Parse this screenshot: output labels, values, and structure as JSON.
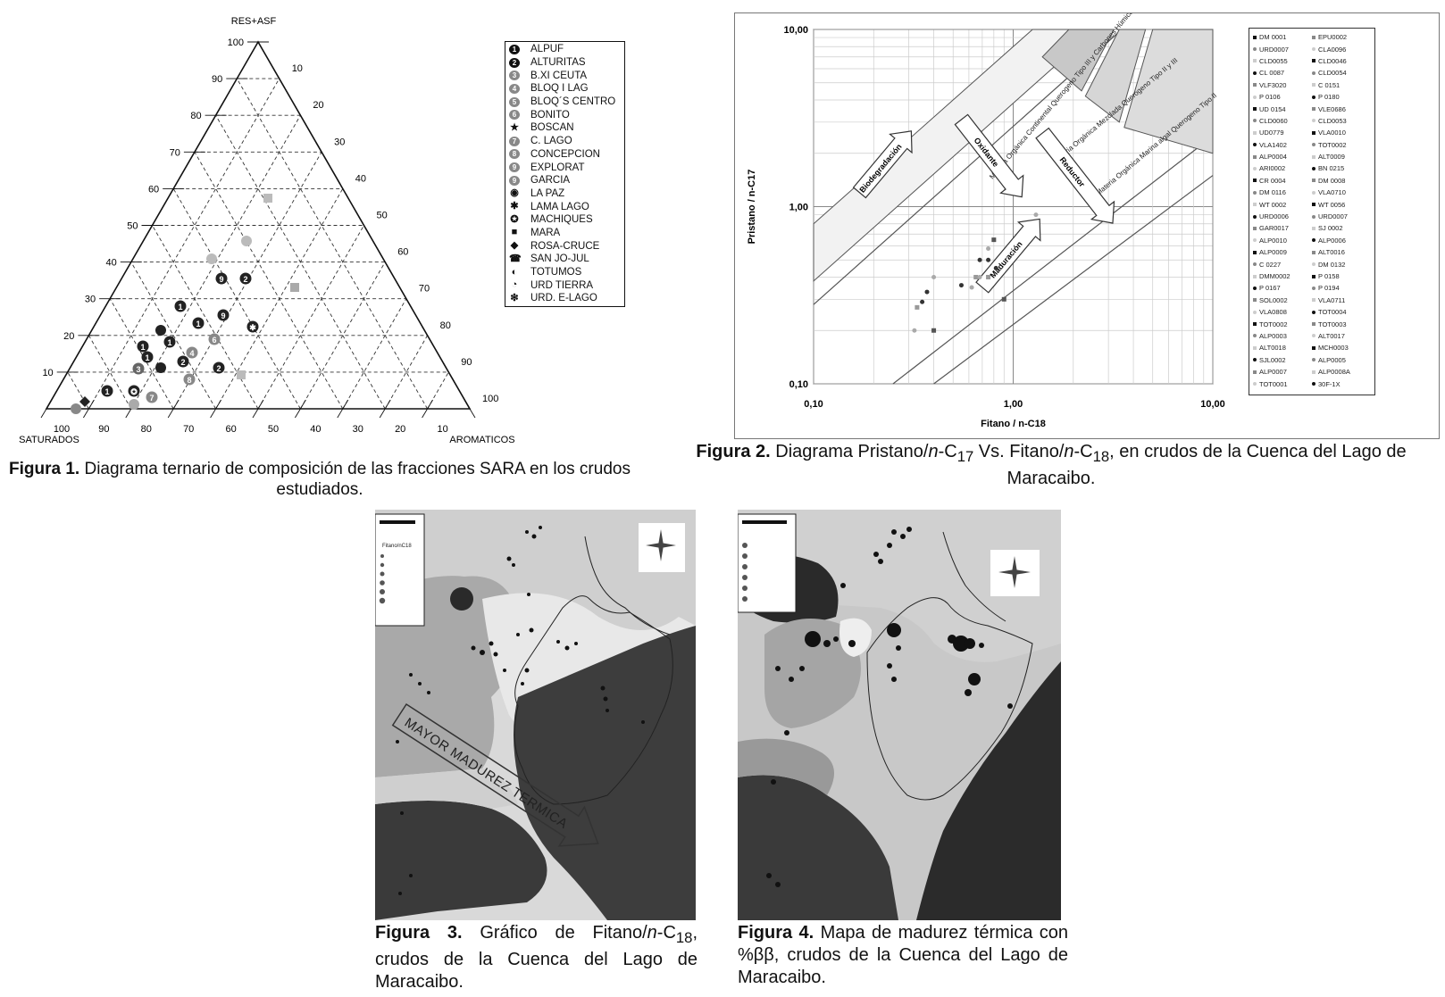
{
  "figure1": {
    "caption_label": "Figura 1.",
    "caption_text": "Diagrama ternario de composición de las fracciones SARA en los crudos estudiados.",
    "apex_top": "RES+ASF",
    "apex_left": "SATURADOS",
    "apex_right": "AROMATICOS",
    "left_ticks": [
      "10",
      "20",
      "30",
      "40",
      "50",
      "60",
      "70",
      "80",
      "90",
      "100"
    ],
    "right_ticks": [
      "10",
      "20",
      "30",
      "40",
      "50",
      "60",
      "70",
      "80",
      "90",
      "100"
    ],
    "bottom_ticks": [
      "100",
      "90",
      "80",
      "70",
      "60",
      "50",
      "40",
      "30",
      "20",
      "10"
    ],
    "legend": [
      {
        "symbol": "1",
        "label": "ALPUF"
      },
      {
        "symbol": "2",
        "label": "ALTURITAS"
      },
      {
        "symbol": "3",
        "label": "B.XI CEUTA"
      },
      {
        "symbol": "4",
        "label": "BLOQ I LAG"
      },
      {
        "symbol": "5",
        "label": "BLOQ´S CENTRO"
      },
      {
        "symbol": "6",
        "label": "BONITO"
      },
      {
        "symbol": "★",
        "label": "BOSCAN"
      },
      {
        "symbol": "7",
        "label": "C. LAGO"
      },
      {
        "symbol": "8",
        "label": "CONCEPCION"
      },
      {
        "symbol": "9",
        "label": "EXPLORAT"
      },
      {
        "symbol": "9",
        "label": "GARCIA"
      },
      {
        "symbol": "◉",
        "label": "LA PAZ"
      },
      {
        "symbol": "✱",
        "label": "LAMA LAGO"
      },
      {
        "symbol": "✪",
        "label": "MACHIQUES"
      },
      {
        "symbol": "■",
        "label": "MARA"
      },
      {
        "symbol": "◆",
        "label": "ROSA-CRUCE"
      },
      {
        "symbol": "☎",
        "label": "SAN JO-JUL"
      },
      {
        "symbol": "◐",
        "label": "TOTUMOS"
      },
      {
        "symbol": "◔",
        "label": "URD TIERRA"
      },
      {
        "symbol": "❇",
        "label": "URD. E-LAGO"
      }
    ]
  },
  "figure2": {
    "caption_label": "Figura 2.",
    "caption_parts": [
      "Diagrama Pristano/",
      "n",
      "-C",
      "17",
      " Vs. Fitano/",
      "n",
      "-C",
      "18",
      ", en crudos de la Cuenca del Lago de Maracaibo."
    ],
    "chart_data": {
      "type": "scatter",
      "xlabel": "Fitano / n-C18",
      "ylabel": "Pristano / n-C17",
      "x_scale": "log",
      "y_scale": "log",
      "xlim": [
        0.1,
        10
      ],
      "ylim": [
        0.1,
        10
      ],
      "x_ticks": [
        "0,10",
        "1,00",
        "10,00"
      ],
      "y_ticks": [
        "0,10",
        "1,00",
        "10,00"
      ],
      "grid": true,
      "legend_position": "right",
      "regions": [
        "Materia Orgánica Continental Querogeno Tipo III y Carbones Húmicos",
        "Materia Orgánica Mezclada Querogeno Tipo II y III",
        "Materia Orgánica Marina algal Querogeno Tipo II"
      ],
      "arrows": [
        "Biodegradación",
        "Oxidante",
        "Reductor",
        "Maduración"
      ],
      "points": [
        {
          "x": 0.33,
          "y": 0.27
        },
        {
          "x": 0.35,
          "y": 0.29
        },
        {
          "x": 0.32,
          "y": 0.2
        },
        {
          "x": 0.4,
          "y": 0.2
        },
        {
          "x": 0.4,
          "y": 0.4
        },
        {
          "x": 0.55,
          "y": 0.36
        },
        {
          "x": 0.65,
          "y": 0.4
        },
        {
          "x": 0.75,
          "y": 0.5
        },
        {
          "x": 0.75,
          "y": 0.58
        },
        {
          "x": 0.8,
          "y": 0.65
        },
        {
          "x": 0.68,
          "y": 0.4
        },
        {
          "x": 0.82,
          "y": 0.45
        },
        {
          "x": 0.75,
          "y": 0.4
        },
        {
          "x": 0.68,
          "y": 0.5
        },
        {
          "x": 0.62,
          "y": 0.35
        },
        {
          "x": 0.9,
          "y": 0.3
        },
        {
          "x": 1.3,
          "y": 0.9
        },
        {
          "x": 0.37,
          "y": 0.33
        }
      ],
      "legend_left": [
        "DM 0001",
        "URD0007",
        "CLD0055",
        "CL 0087",
        "VLF3020",
        "P 0106",
        "UD 0154",
        "CLD0060",
        "UD0779",
        "VLA1402",
        "ALP0004",
        "ARI0002",
        "CR 0004",
        "DM 0116",
        "WT 0002",
        "URD0006",
        "GAR0017",
        "ALP0010",
        "ALP0009",
        "C 0227",
        "DMM0002",
        "P 0167",
        "SOL0002",
        "VLA0808",
        "TOT0002",
        "ALP0003",
        "ALT0018",
        "SJL0002",
        "ALP0007",
        "TOT0001"
      ],
      "legend_right": [
        "EPU0002",
        "CLA0096",
        "CLD0046",
        "CLD0054",
        "C 0151",
        "P 0180",
        "VLE0686",
        "CLD0053",
        "VLA0010",
        "TOT0002",
        "ALT0009",
        "BN 0215",
        "DM 0008",
        "VLA0710",
        "WT 0056",
        "URD0007",
        "SJ 0002",
        "ALP0006",
        "ALT0016",
        "DM 0132",
        "P 0158",
        "P 0194",
        "VLA0711",
        "TOT0004",
        "TOT0003",
        "ALT0017",
        "MCH0003",
        "ALP0005",
        "ALP0008A",
        "30F-1X"
      ]
    }
  },
  "figure3": {
    "caption_label": "Figura 3.",
    "caption_parts": [
      "Gráfico de Fitano/",
      "n",
      "-C",
      "18",
      ", crudos de la Cuenca del Lago de Maracaibo."
    ],
    "arrow_label": "MAYOR MADUREZ TERMICA",
    "legend_title": "Fitano/nC18"
  },
  "figure4": {
    "caption_label": "Figura 4.",
    "caption_text": "Mapa de madurez térmica con %ββ, crudos de la Cuenca del Lago de Maracaibo."
  }
}
